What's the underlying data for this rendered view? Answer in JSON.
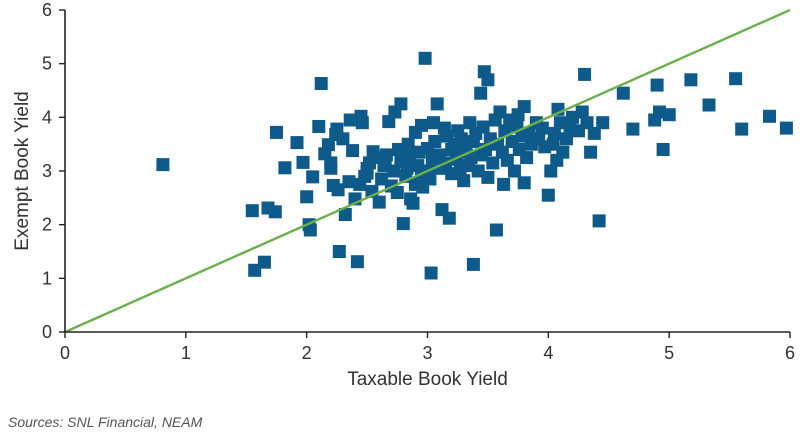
{
  "chart_data": {
    "type": "scatter",
    "xlabel": "Taxable Book Yield",
    "ylabel": "Exempt Book Yield",
    "xlim": [
      0,
      6
    ],
    "ylim": [
      0,
      6
    ],
    "xticks": [
      "0",
      "1",
      "2",
      "3",
      "4",
      "5",
      "6"
    ],
    "yticks": [
      "0",
      "1",
      "2",
      "3",
      "4",
      "5",
      "6"
    ],
    "grid": false,
    "reference_line": {
      "from": [
        0,
        0
      ],
      "to": [
        6,
        6
      ],
      "color": "#6ab04c"
    },
    "marker_color": "#0e5a8a",
    "points": [
      [
        0.81,
        3.12
      ],
      [
        1.55,
        2.26
      ],
      [
        1.57,
        1.15
      ],
      [
        1.65,
        1.3
      ],
      [
        1.68,
        2.31
      ],
      [
        1.74,
        2.24
      ],
      [
        1.75,
        3.72
      ],
      [
        1.82,
        3.06
      ],
      [
        1.92,
        3.53
      ],
      [
        1.97,
        3.16
      ],
      [
        2.0,
        2.52
      ],
      [
        2.02,
        2.0
      ],
      [
        2.03,
        1.9
      ],
      [
        2.05,
        2.89
      ],
      [
        2.1,
        3.83
      ],
      [
        2.12,
        4.63
      ],
      [
        2.15,
        3.32
      ],
      [
        2.18,
        3.49
      ],
      [
        2.2,
        3.05
      ],
      [
        2.2,
        3.15
      ],
      [
        2.22,
        2.73
      ],
      [
        2.24,
        3.68
      ],
      [
        2.25,
        3.78
      ],
      [
        2.26,
        2.65
      ],
      [
        2.27,
        1.5
      ],
      [
        2.3,
        3.6
      ],
      [
        2.32,
        2.19
      ],
      [
        2.35,
        2.8
      ],
      [
        2.36,
        3.95
      ],
      [
        2.38,
        3.38
      ],
      [
        2.4,
        2.48
      ],
      [
        2.42,
        1.31
      ],
      [
        2.44,
        2.75
      ],
      [
        2.45,
        4.02
      ],
      [
        2.46,
        3.9
      ],
      [
        2.48,
        2.9
      ],
      [
        2.5,
        2.96
      ],
      [
        2.5,
        3.05
      ],
      [
        2.52,
        3.15
      ],
      [
        2.54,
        2.62
      ],
      [
        2.55,
        3.36
      ],
      [
        2.58,
        3.25
      ],
      [
        2.6,
        2.42
      ],
      [
        2.62,
        2.85
      ],
      [
        2.64,
        3.1
      ],
      [
        2.65,
        3.22
      ],
      [
        2.66,
        3.3
      ],
      [
        2.68,
        3.92
      ],
      [
        2.7,
        2.72
      ],
      [
        2.72,
        3.0
      ],
      [
        2.73,
        4.1
      ],
      [
        2.75,
        2.6
      ],
      [
        2.76,
        3.4
      ],
      [
        2.78,
        3.18
      ],
      [
        2.78,
        4.25
      ],
      [
        2.8,
        2.02
      ],
      [
        2.82,
        2.9
      ],
      [
        2.83,
        3.05
      ],
      [
        2.84,
        3.5
      ],
      [
        2.85,
        3.28
      ],
      [
        2.86,
        2.48
      ],
      [
        2.88,
        2.4
      ],
      [
        2.9,
        3.72
      ],
      [
        2.9,
        2.75
      ],
      [
        2.92,
        3.1
      ],
      [
        2.93,
        3.35
      ],
      [
        2.95,
        2.92
      ],
      [
        2.95,
        3.85
      ],
      [
        2.96,
        2.7
      ],
      [
        2.98,
        5.1
      ],
      [
        3.0,
        3.0
      ],
      [
        3.0,
        3.42
      ],
      [
        3.02,
        2.85
      ],
      [
        3.03,
        1.1
      ],
      [
        3.04,
        3.2
      ],
      [
        3.05,
        3.9
      ],
      [
        3.06,
        3.55
      ],
      [
        3.08,
        4.25
      ],
      [
        3.1,
        3.05
      ],
      [
        3.1,
        3.3
      ],
      [
        3.12,
        2.28
      ],
      [
        3.14,
        3.8
      ],
      [
        3.15,
        3.15
      ],
      [
        3.16,
        3.65
      ],
      [
        3.18,
        2.12
      ],
      [
        3.2,
        3.4
      ],
      [
        3.2,
        2.95
      ],
      [
        3.22,
        3.5
      ],
      [
        3.24,
        3.22
      ],
      [
        3.25,
        3.75
      ],
      [
        3.27,
        3.0
      ],
      [
        3.28,
        3.6
      ],
      [
        3.3,
        2.82
      ],
      [
        3.3,
        3.35
      ],
      [
        3.32,
        3.45
      ],
      [
        3.34,
        3.1
      ],
      [
        3.35,
        3.9
      ],
      [
        3.36,
        3.25
      ],
      [
        3.38,
        3.55
      ],
      [
        3.38,
        1.26
      ],
      [
        3.4,
        3.7
      ],
      [
        3.42,
        3.0
      ],
      [
        3.44,
        4.45
      ],
      [
        3.45,
        3.3
      ],
      [
        3.46,
        3.82
      ],
      [
        3.47,
        4.85
      ],
      [
        3.48,
        3.4
      ],
      [
        3.5,
        2.88
      ],
      [
        3.5,
        4.7
      ],
      [
        3.52,
        3.6
      ],
      [
        3.54,
        3.15
      ],
      [
        3.56,
        3.95
      ],
      [
        3.57,
        1.9
      ],
      [
        3.58,
        3.5
      ],
      [
        3.6,
        4.1
      ],
      [
        3.62,
        3.35
      ],
      [
        3.63,
        2.75
      ],
      [
        3.64,
        3.75
      ],
      [
        3.66,
        3.2
      ],
      [
        3.68,
        3.95
      ],
      [
        3.7,
        3.55
      ],
      [
        3.72,
        3.0
      ],
      [
        3.74,
        3.85
      ],
      [
        3.75,
        4.05
      ],
      [
        3.76,
        3.4
      ],
      [
        3.78,
        3.65
      ],
      [
        3.8,
        2.78
      ],
      [
        3.8,
        4.2
      ],
      [
        3.82,
        3.25
      ],
      [
        3.84,
        3.7
      ],
      [
        3.86,
        3.5
      ],
      [
        3.9,
        3.9
      ],
      [
        3.92,
        3.6
      ],
      [
        3.95,
        3.8
      ],
      [
        3.97,
        3.45
      ],
      [
        4.0,
        2.55
      ],
      [
        4.02,
        3.0
      ],
      [
        4.04,
        3.5
      ],
      [
        4.05,
        3.7
      ],
      [
        4.07,
        3.2
      ],
      [
        4.08,
        4.15
      ],
      [
        4.1,
        3.9
      ],
      [
        4.12,
        3.35
      ],
      [
        4.15,
        3.6
      ],
      [
        4.18,
        3.8
      ],
      [
        4.2,
        4.0
      ],
      [
        4.25,
        3.75
      ],
      [
        4.28,
        4.1
      ],
      [
        4.3,
        4.8
      ],
      [
        4.32,
        3.9
      ],
      [
        4.35,
        3.35
      ],
      [
        4.38,
        3.7
      ],
      [
        4.42,
        2.07
      ],
      [
        4.45,
        3.9
      ],
      [
        4.62,
        4.45
      ],
      [
        4.7,
        3.78
      ],
      [
        4.88,
        3.95
      ],
      [
        4.9,
        4.6
      ],
      [
        4.92,
        4.1
      ],
      [
        4.95,
        3.4
      ],
      [
        5.0,
        4.05
      ],
      [
        5.18,
        4.7
      ],
      [
        5.33,
        4.23
      ],
      [
        5.55,
        4.72
      ],
      [
        5.6,
        3.78
      ],
      [
        5.83,
        4.02
      ],
      [
        5.97,
        3.8
      ]
    ]
  },
  "source_note": "Sources: SNL Financial, NEAM"
}
